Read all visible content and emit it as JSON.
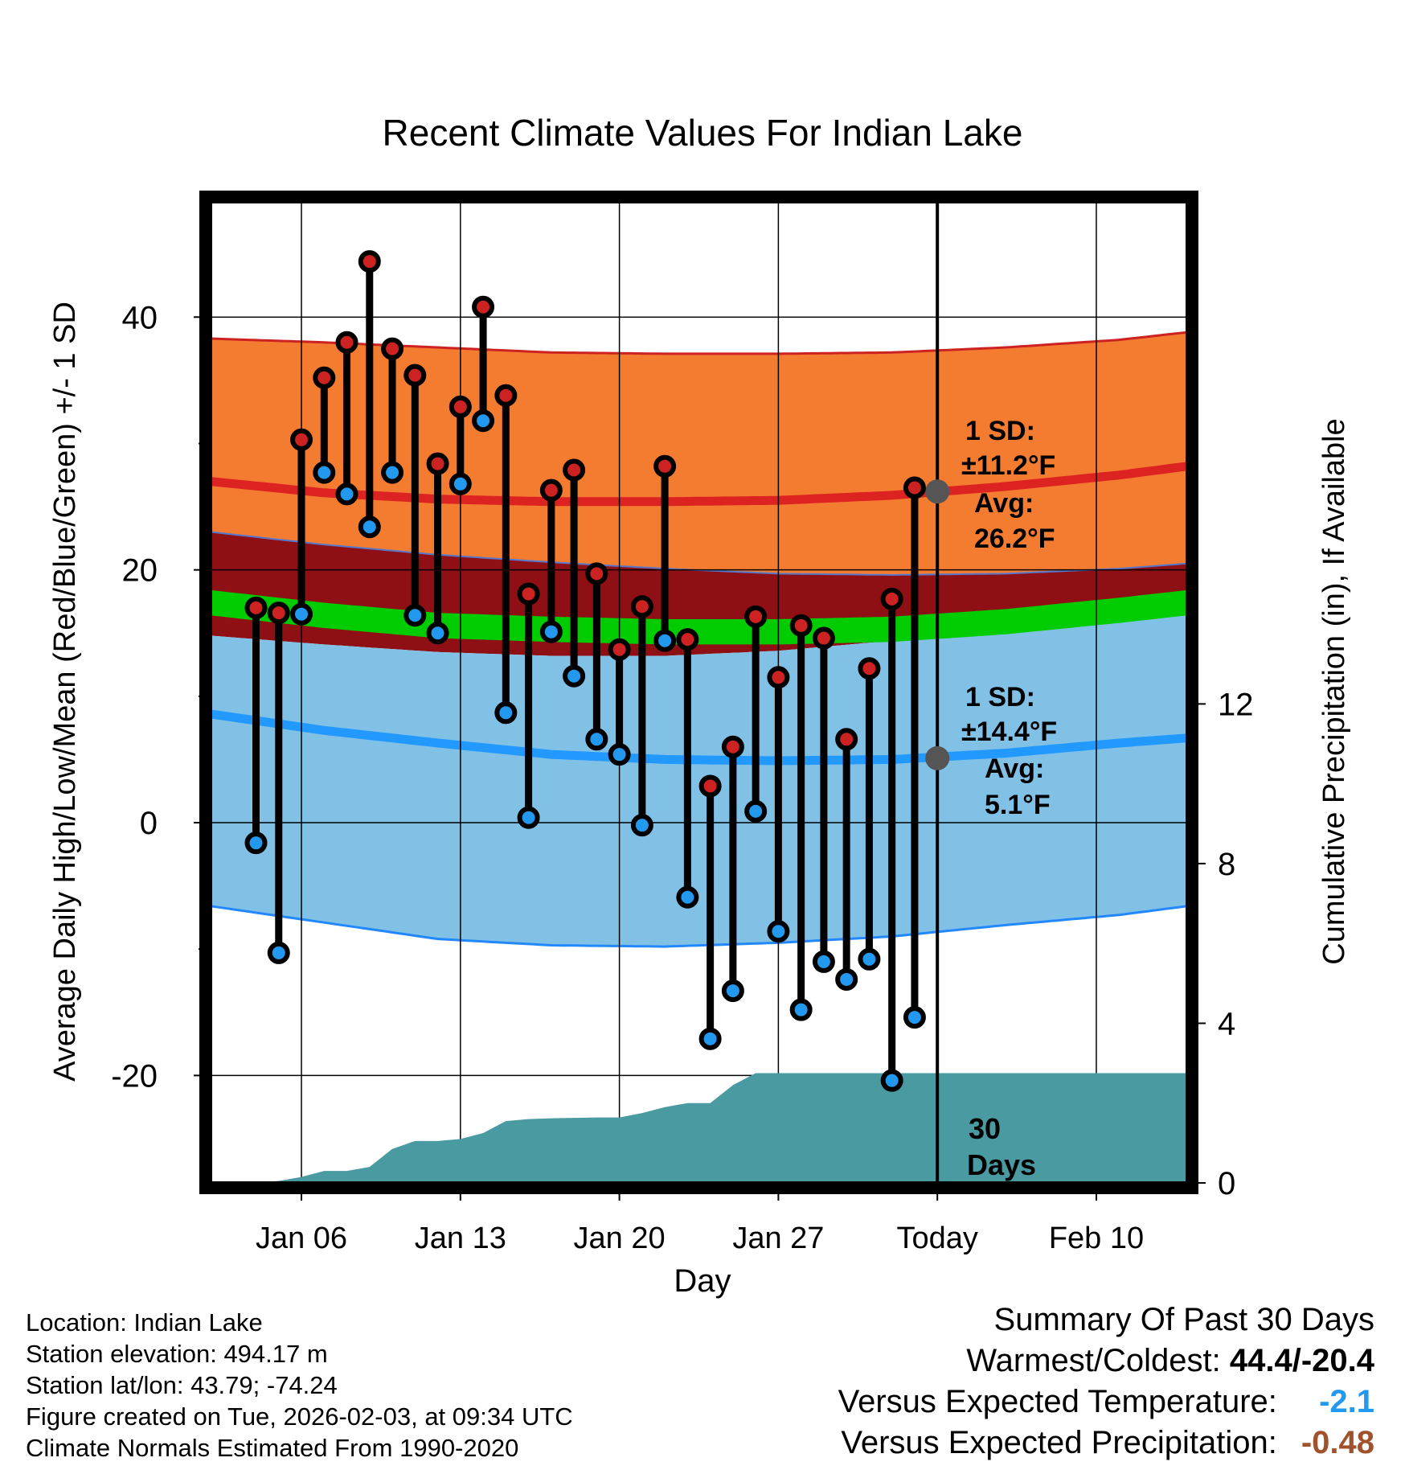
{
  "chart_data": {
    "type": "line",
    "title": "Recent Climate Values For Indian Lake",
    "xlabel": "Day",
    "ylabel": "Average Daily High/Low/Mean (Red/Blue/Green) +/- 1 SD",
    "ylabel_right": "Cumulative Precipitation (in), If Available",
    "x_day_range": [
      2,
      45
    ],
    "ylim": [
      -28.5,
      49.5
    ],
    "ylim_right": [
      0,
      24.7
    ],
    "x_ticks": [
      {
        "day": 6,
        "label": "Jan 06"
      },
      {
        "day": 13,
        "label": "Jan 13"
      },
      {
        "day": 20,
        "label": "Jan 20"
      },
      {
        "day": 27,
        "label": "Jan 27"
      },
      {
        "day": 34,
        "label": "Today"
      },
      {
        "day": 41,
        "label": "Feb 10"
      }
    ],
    "y_ticks": [
      -20,
      0,
      20,
      40
    ],
    "y_ticks_right": [
      0,
      4,
      8,
      12
    ],
    "today_day": 34,
    "days": [
      4,
      5,
      6,
      7,
      8,
      9,
      10,
      11,
      12,
      13,
      14,
      15,
      16,
      17,
      18,
      19,
      20,
      21,
      22,
      23,
      24,
      25,
      26,
      27,
      28,
      29,
      30,
      31,
      32,
      33
    ],
    "series": [
      {
        "name": "Daily High",
        "color": "#cc2222",
        "values": [
          17.0,
          16.6,
          30.3,
          35.2,
          38.0,
          44.4,
          37.5,
          35.4,
          28.4,
          32.9,
          40.8,
          33.8,
          18.1,
          26.3,
          27.9,
          19.7,
          13.7,
          17.1,
          28.2,
          14.5,
          2.9,
          6.0,
          16.3,
          11.5,
          15.6,
          14.6,
          6.6,
          12.2,
          17.7,
          26.5
        ]
      },
      {
        "name": "Daily Low",
        "color": "#2299ee",
        "values": [
          -1.6,
          -10.3,
          16.5,
          27.7,
          26.0,
          23.4,
          27.7,
          16.4,
          15.0,
          26.8,
          31.8,
          8.7,
          0.4,
          15.1,
          11.6,
          6.6,
          5.4,
          -0.2,
          14.4,
          -5.9,
          -17.1,
          -13.3,
          0.9,
          -8.6,
          -14.8,
          -11.0,
          -12.4,
          -10.8,
          -20.4,
          -15.4
        ]
      },
      {
        "name": "Normal High Avg",
        "color": "#dd2222",
        "x": [
          2,
          7,
          12,
          17,
          22,
          27,
          32,
          37,
          42,
          45
        ],
        "values": [
          27.0,
          26.1,
          25.6,
          25.4,
          25.4,
          25.5,
          25.9,
          26.6,
          27.5,
          28.2
        ]
      },
      {
        "name": "Normal High +1SD",
        "color": "#cc2222",
        "x": [
          2,
          7,
          12,
          17,
          22,
          27,
          32,
          37,
          42,
          45
        ],
        "values": [
          38.3,
          38.0,
          37.6,
          37.2,
          37.1,
          37.1,
          37.2,
          37.6,
          38.2,
          38.8
        ]
      },
      {
        "name": "Normal High -1SD",
        "color": "#5577cc",
        "x": [
          2,
          7,
          12,
          17,
          22,
          27,
          32,
          37,
          42,
          45
        ],
        "values": [
          23.0,
          22.0,
          21.2,
          20.6,
          20.1,
          19.7,
          19.6,
          19.7,
          20.1,
          20.5
        ]
      },
      {
        "name": "Normal Mean",
        "color": "#00cc00",
        "x": [
          2,
          7,
          12,
          17,
          22,
          27,
          32,
          37,
          42,
          45
        ],
        "values": [
          17.4,
          16.4,
          15.6,
          15.3,
          15.1,
          15.1,
          15.3,
          15.9,
          16.8,
          17.4
        ]
      },
      {
        "name": "Normal Low +1SD",
        "color": "#aaaaaa",
        "x": [
          2,
          7,
          12,
          17,
          22,
          27,
          32,
          37,
          42,
          45
        ],
        "values": [
          14.8,
          14.1,
          13.5,
          13.2,
          13.2,
          13.6,
          14.4,
          15.2,
          16.0,
          16.6
        ]
      },
      {
        "name": "Normal Low Avg",
        "color": "#2299ff",
        "x": [
          2,
          7,
          12,
          17,
          22,
          27,
          32,
          37,
          42,
          45
        ],
        "values": [
          8.6,
          7.3,
          6.3,
          5.4,
          5.0,
          4.9,
          5.0,
          5.5,
          6.3,
          6.7
        ]
      },
      {
        "name": "Normal Low -1SD",
        "color": "#2288ff",
        "x": [
          2,
          7,
          12,
          17,
          22,
          27,
          32,
          37,
          42,
          45
        ],
        "values": [
          -6.6,
          -7.9,
          -9.2,
          -9.7,
          -9.8,
          -9.5,
          -9.0,
          -8.1,
          -7.3,
          -6.6
        ]
      },
      {
        "name": "Cumulative Precipitation (in)",
        "color": "#4a9aa2",
        "axis": "right",
        "x": [
          2,
          4,
          5,
          6,
          7,
          8,
          9,
          10,
          11,
          12,
          13,
          14,
          15,
          16,
          17,
          18,
          19,
          20,
          21,
          22,
          23,
          24,
          25,
          26,
          27,
          28,
          29,
          30,
          31,
          32,
          33,
          34,
          45
        ],
        "values": [
          0,
          0,
          0.05,
          0.15,
          0.3,
          0.3,
          0.4,
          0.85,
          1.05,
          1.05,
          1.1,
          1.25,
          1.55,
          1.6,
          1.62,
          1.63,
          1.64,
          1.64,
          1.75,
          1.9,
          2.0,
          2.0,
          2.45,
          2.75,
          2.75,
          2.75,
          2.75,
          2.75,
          2.75,
          2.75,
          2.75,
          2.75,
          2.75
        ]
      }
    ],
    "annotations": {
      "high_sd": "1 SD:",
      "high_sd_value": "±11.2°F",
      "high_avg": "Avg:",
      "high_avg_value": "26.2°F",
      "low_sd": "1 SD:",
      "low_sd_value": "±14.4°F",
      "low_avg": "Avg:",
      "low_avg_value": "5.1°F",
      "high_avg_marker": 26.2,
      "low_avg_marker": 5.1,
      "period_number": "30",
      "period_unit": "Days"
    },
    "colors": {
      "high_band": "#f47c30",
      "overlap_band": "#8e1015",
      "mean_band": "#00cc00",
      "low_band": "#82c1e6",
      "precip": "#4a9aa2",
      "annotation": "#555555"
    }
  },
  "meta": {
    "location": "Location: Indian Lake",
    "elevation": "Station elevation: 494.17 m",
    "latlon": "Station lat/lon: 43.79; -74.24",
    "created": "Figure created on Tue, 2026-02-03, at 09:34 UTC",
    "normals": "Climate Normals Estimated From 1990-2020"
  },
  "summary": {
    "title": "Summary Of Past 30 Days",
    "warm_cold_label": "Warmest/Coldest:",
    "warm_cold_value": "44.4/-20.4",
    "temp_label": "Versus Expected Temperature:",
    "temp_value": "-2.1",
    "temp_color": "#2299ee",
    "precip_label": "Versus Expected Precipitation:",
    "precip_value": "-0.48",
    "precip_color": "#a0522d"
  }
}
